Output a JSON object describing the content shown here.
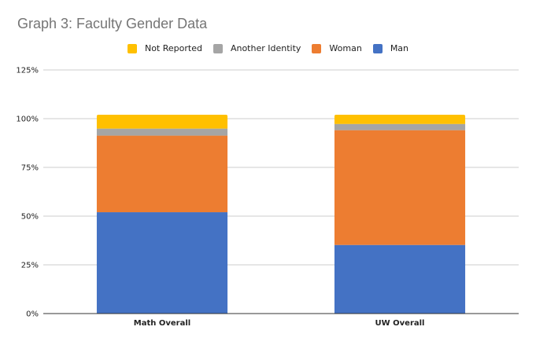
{
  "chart_data": {
    "type": "bar",
    "stacked": true,
    "title": "Graph 3: Faculty Gender Data",
    "xlabel": "",
    "ylabel": "",
    "categories": [
      "Math Overall",
      "UW Overall"
    ],
    "series": [
      {
        "name": "Man",
        "color": "#4472C4",
        "values": [
          52.0,
          35.2
        ]
      },
      {
        "name": "Woman",
        "color": "#ED7D31",
        "values": [
          39.3,
          58.9
        ]
      },
      {
        "name": "Another Identity",
        "color": "#A5A5A5",
        "values": [
          3.6,
          3.2
        ]
      },
      {
        "name": "Not Reported",
        "color": "#FFC000",
        "values": [
          7.1,
          4.7
        ]
      }
    ],
    "legend_order": [
      "Not Reported",
      "Another Identity",
      "Woman",
      "Man"
    ],
    "legend_position": "top",
    "ylim": [
      0,
      125
    ],
    "yticks": [
      0,
      25,
      50,
      75,
      100,
      125
    ],
    "ytick_labels": [
      "0%",
      "25%",
      "50%",
      "75%",
      "100%",
      "125%"
    ],
    "grid": true
  }
}
